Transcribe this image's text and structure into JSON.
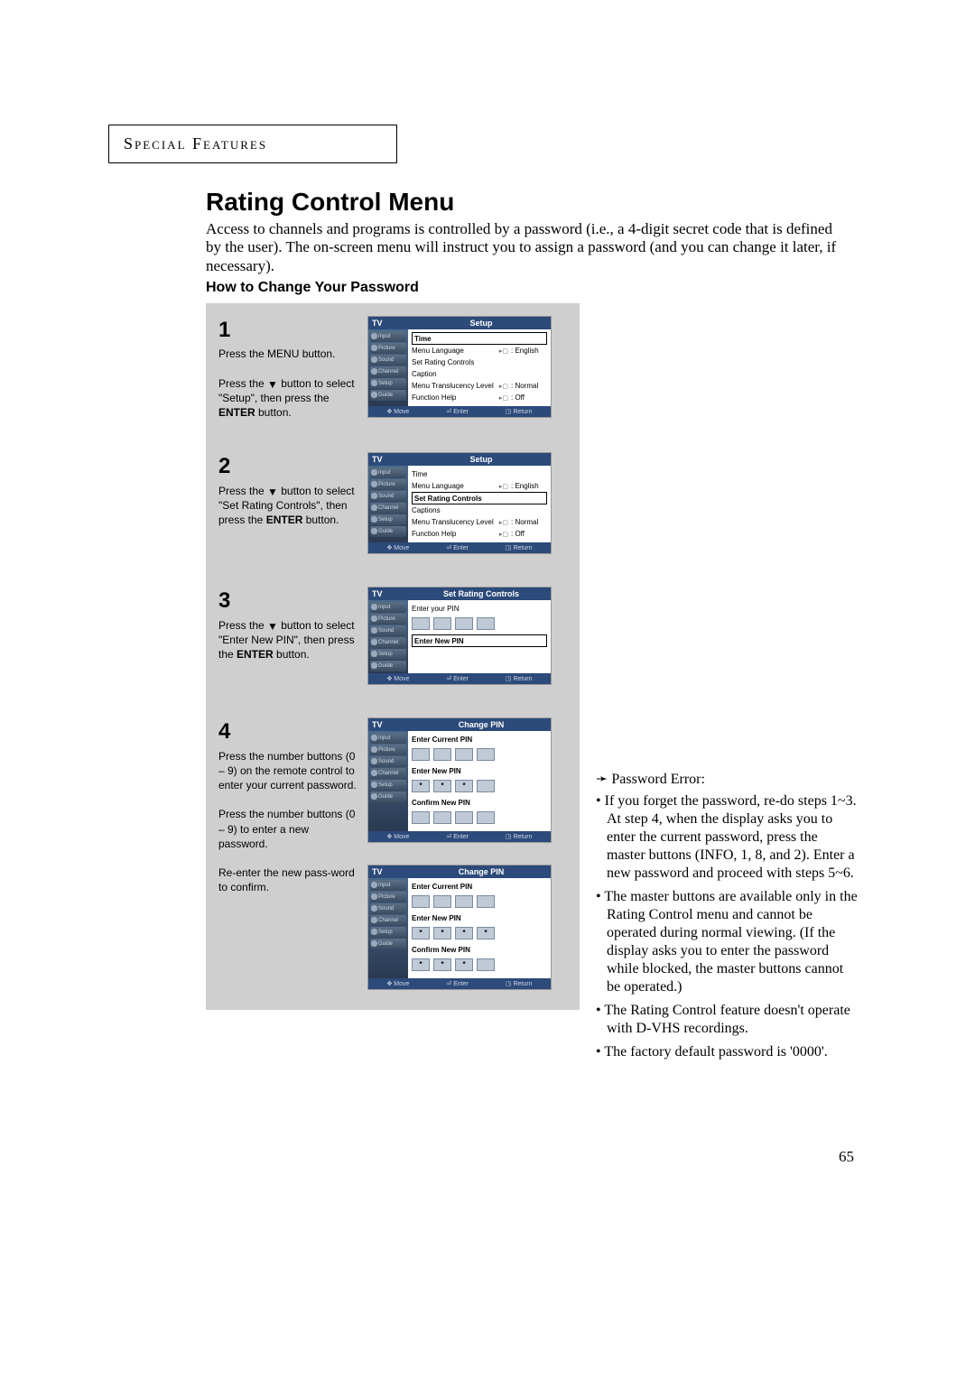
{
  "sectionHeader": "Special Features",
  "title": "Rating Control Menu",
  "intro": "Access to channels and programs is controlled by a password (i.e., a 4-digit secret code that is defined by the user). The on-screen menu will instruct you to assign a password (and you can change it later, if necessary).",
  "subhead": "How to Change Your Password",
  "pageNumber": "65",
  "steps": {
    "s1": {
      "num": "1",
      "text_a": "Press the MENU button.",
      "text_b_pre": "Press the ",
      "text_b_sym": "▼",
      "text_b_post": " button to select \"Setup\", then press the ",
      "text_b_bold": "ENTER",
      "text_b_tail": " button."
    },
    "s2": {
      "num": "2",
      "text_pre": "Press the ",
      "text_sym": "▼",
      "text_post": " button to select \"Set Rating Controls\", then press the ",
      "text_bold": "ENTER",
      "text_tail": " button."
    },
    "s3": {
      "num": "3",
      "text_pre": "Press the ",
      "text_sym": "▼",
      "text_post": " button to select \"Enter New PIN\", then press the ",
      "text_bold": "ENTER",
      "text_tail": " button."
    },
    "s4": {
      "num": "4",
      "text_a": "Press the number buttons (0 – 9) on the remote control to enter your current password.",
      "text_b": "Press the number buttons (0 – 9) to enter a new password.",
      "text_c": "Re-enter the new pass-word to confirm."
    }
  },
  "osdShared": {
    "tv": "TV",
    "side": [
      "Input",
      "Picture",
      "Sound",
      "Channel",
      "Setup",
      "Guide"
    ],
    "footer": {
      "move": "Move",
      "enter": "Enter",
      "return": "Return"
    }
  },
  "osd1": {
    "topRight": "Setup",
    "rows": [
      {
        "label": "Time",
        "val": "",
        "hl": true,
        "bold": true,
        "icon": ""
      },
      {
        "label": "Menu Language",
        "val": ": English",
        "icon": "▸▢"
      },
      {
        "label": "Set Rating Controls",
        "val": "",
        "icon": ""
      },
      {
        "label": "Caption",
        "val": "",
        "icon": ""
      },
      {
        "label": "Menu Translucency Level",
        "val": ": Normal",
        "icon": "▸▢"
      },
      {
        "label": "Function Help",
        "val": ": Off",
        "icon": "▸▢"
      }
    ]
  },
  "osd2": {
    "topRight": "Setup",
    "rows": [
      {
        "label": "Time",
        "val": "",
        "icon": ""
      },
      {
        "label": "Menu Language",
        "val": ": English",
        "icon": "▸▢"
      },
      {
        "label": "Set Rating Controls",
        "val": "",
        "hl": true,
        "bold": true,
        "icon": ""
      },
      {
        "label": "Captions",
        "val": "",
        "icon": ""
      },
      {
        "label": "Menu Translucency Level",
        "val": ": Normal",
        "icon": "▸▢"
      },
      {
        "label": "Function Help",
        "val": ": Off",
        "icon": "▸▢"
      }
    ]
  },
  "osd3": {
    "topRight": "Set Rating Controls",
    "prompt": "Enter your PIN",
    "pins": [
      "",
      "",
      "",
      ""
    ],
    "highlightLabel": "Enter New PIN"
  },
  "osd4": {
    "topRight": "Change PIN",
    "sections": [
      {
        "label": "Enter Current PIN",
        "pins": [
          "",
          "",
          "",
          ""
        ],
        "bold": true
      },
      {
        "label": "Enter New PIN",
        "pins": [
          "*",
          "*",
          "*",
          ""
        ],
        "bold": true
      },
      {
        "label": "Confirm New PIN",
        "pins": [
          "",
          "",
          "",
          ""
        ],
        "bold": true
      }
    ]
  },
  "osd5": {
    "topRight": "Change PIN",
    "sections": [
      {
        "label": "Enter Current PIN",
        "pins": [
          "",
          "",
          "",
          ""
        ],
        "bold": true
      },
      {
        "label": "Enter New PIN",
        "pins": [
          "*",
          "*",
          "*",
          "*"
        ],
        "bold": true
      },
      {
        "label": "Confirm New PIN",
        "pins": [
          "*",
          "*",
          "*",
          ""
        ],
        "bold": true
      }
    ]
  },
  "sideNotes": {
    "arrow": "➛",
    "hdr": "Password Error:",
    "items": [
      "If you forget the password, re-do steps 1~3.\nAt step 4, when the display asks you to enter the current password, press the master buttons (INFO, 1, 8, and 2). Enter a new password and proceed with steps 5~6.",
      "The master buttons are available only in the Rating Control menu and cannot be operated during normal viewing. (If the display asks you to enter the password while blocked, the master buttons cannot be operated.)",
      "The Rating Control feature doesn't operate with D-VHS recordings.",
      "The factory default password is '0000'."
    ]
  }
}
